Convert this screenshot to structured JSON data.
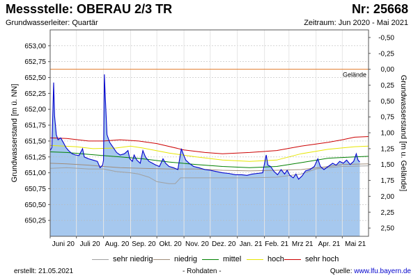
{
  "header": {
    "title": "Messstelle: OBERAU 2/3 TR",
    "number": "Nr: 25668",
    "aquifer": "Grundwasserleiter: Quartär",
    "period": "Zeitraum: Jun 2020 - Mai 2021"
  },
  "footer": {
    "created": "erstellt:  21.05.2021",
    "note": "- Rohdaten -",
    "source_label": "Quelle: ",
    "source_link": "www.lfu.bayern.de"
  },
  "colors": {
    "area_fill": "#a6c8ee",
    "measured_line": "#0000cc",
    "sehr_niedrig": "#a0a0a0",
    "niedrig": "#a08c7a",
    "mittel": "#008000",
    "hoch": "#e6e600",
    "sehr_hoch": "#cc0000",
    "gelaende": "#e07a2a",
    "grid": "#bbbbbb"
  },
  "chart_data": {
    "type": "line",
    "ylabel": "Grundwasserstand [m ü. NN]",
    "y2label": "Grundwasserstand [m u. Gelände]",
    "ylim": [
      650.0,
      653.25
    ],
    "y_ticks": [
      "650,25",
      "650,50",
      "650,75",
      "651,00",
      "651,25",
      "651,50",
      "651,75",
      "652,00",
      "652,25",
      "652,50",
      "652,75",
      "653,00"
    ],
    "y_tick_values": [
      650.25,
      650.5,
      650.75,
      651.0,
      651.25,
      651.5,
      651.75,
      652.0,
      652.25,
      652.5,
      652.75,
      653.0
    ],
    "y2_ticks": [
      "2,50",
      "2,25",
      "2,00",
      "1,75",
      "1,50",
      "1,25",
      "1,00",
      "0,75",
      "0,50",
      "0,25",
      "0,00",
      "-0,25",
      "-0,50"
    ],
    "y2_tick_values": [
      2.5,
      2.25,
      2.0,
      1.75,
      1.5,
      1.25,
      1.0,
      0.75,
      0.5,
      0.25,
      0.0,
      -0.25,
      -0.5
    ],
    "ground_level": 652.63,
    "ground_label": "Gelände",
    "x_start": "2020-06-01",
    "x_end": "2021-05-31",
    "x_ticks": [
      {
        "date": "2020-06-01",
        "label": "Juni 20"
      },
      {
        "date": "2020-07-01",
        "label": "Juli 20"
      },
      {
        "date": "2020-08-01",
        "label": "Aug. 20"
      },
      {
        "date": "2020-09-01",
        "label": "Sep. 20"
      },
      {
        "date": "2020-10-01",
        "label": "Okt. 20"
      },
      {
        "date": "2020-11-01",
        "label": "Nov. 20"
      },
      {
        "date": "2020-12-01",
        "label": "Dez. 20"
      },
      {
        "date": "2021-01-01",
        "label": "Jan. 21"
      },
      {
        "date": "2021-02-01",
        "label": "Feb. 21"
      },
      {
        "date": "2021-03-01",
        "label": "Mrz 21"
      },
      {
        "date": "2021-04-01",
        "label": "Apr. 21"
      },
      {
        "date": "2021-05-01",
        "label": "Mai 21"
      }
    ],
    "series": [
      {
        "name": "sehr niedrig",
        "color_key": "sehr_niedrig",
        "points": [
          [
            "2020-06-01",
            651.07
          ],
          [
            "2020-06-20",
            651.08
          ],
          [
            "2020-07-15",
            651.06
          ],
          [
            "2020-08-01",
            651.06
          ],
          [
            "2020-08-15",
            651.02
          ],
          [
            "2020-09-01",
            651.0
          ],
          [
            "2020-09-10",
            650.98
          ],
          [
            "2020-09-22",
            650.93
          ],
          [
            "2020-10-01",
            650.86
          ],
          [
            "2020-10-15",
            650.83
          ],
          [
            "2020-10-22",
            650.83
          ],
          [
            "2020-10-28",
            650.92
          ],
          [
            "2020-11-15",
            650.92
          ],
          [
            "2020-12-15",
            650.92
          ],
          [
            "2021-01-15",
            650.92
          ],
          [
            "2021-02-15",
            650.93
          ],
          [
            "2021-03-15",
            650.98
          ],
          [
            "2021-04-01",
            651.06
          ],
          [
            "2021-04-15",
            651.08
          ],
          [
            "2021-05-01",
            651.1
          ],
          [
            "2021-05-31",
            651.11
          ]
        ]
      },
      {
        "name": "niedrig",
        "color_key": "niedrig",
        "points": [
          [
            "2020-06-01",
            651.15
          ],
          [
            "2020-06-20",
            651.14
          ],
          [
            "2020-07-15",
            651.12
          ],
          [
            "2020-08-01",
            651.1
          ],
          [
            "2020-08-20",
            651.08
          ],
          [
            "2020-09-15",
            651.07
          ],
          [
            "2020-10-15",
            651.06
          ],
          [
            "2020-11-15",
            651.06
          ],
          [
            "2020-12-15",
            651.04
          ],
          [
            "2021-01-15",
            651.03
          ],
          [
            "2021-02-15",
            651.04
          ],
          [
            "2021-03-15",
            651.05
          ],
          [
            "2021-04-15",
            651.1
          ],
          [
            "2021-05-01",
            651.13
          ],
          [
            "2021-05-31",
            651.14
          ]
        ]
      },
      {
        "name": "mittel",
        "color_key": "mittel",
        "points": [
          [
            "2020-06-01",
            651.33
          ],
          [
            "2020-06-20",
            651.32
          ],
          [
            "2020-07-15",
            651.29
          ],
          [
            "2020-08-01",
            651.27
          ],
          [
            "2020-08-20",
            651.25
          ],
          [
            "2020-09-15",
            651.22
          ],
          [
            "2020-10-15",
            651.17
          ],
          [
            "2020-11-15",
            651.13
          ],
          [
            "2020-12-15",
            651.1
          ],
          [
            "2021-01-15",
            651.08
          ],
          [
            "2021-02-15",
            651.1
          ],
          [
            "2021-03-15",
            651.16
          ],
          [
            "2021-04-15",
            651.23
          ],
          [
            "2021-05-15",
            651.25
          ],
          [
            "2021-05-31",
            651.26
          ]
        ]
      },
      {
        "name": "hoch",
        "color_key": "hoch",
        "points": [
          [
            "2020-06-01",
            651.43
          ],
          [
            "2020-07-01",
            651.41
          ],
          [
            "2020-07-20",
            651.38
          ],
          [
            "2020-08-15",
            651.39
          ],
          [
            "2020-09-01",
            651.42
          ],
          [
            "2020-09-15",
            651.39
          ],
          [
            "2020-10-15",
            651.31
          ],
          [
            "2020-11-15",
            651.25
          ],
          [
            "2020-12-15",
            651.2
          ],
          [
            "2021-01-15",
            651.18
          ],
          [
            "2021-02-15",
            651.2
          ],
          [
            "2021-03-15",
            651.3
          ],
          [
            "2021-04-15",
            651.37
          ],
          [
            "2021-05-15",
            651.41
          ],
          [
            "2021-05-31",
            651.42
          ]
        ]
      },
      {
        "name": "sehr hoch",
        "color_key": "sehr_hoch",
        "points": [
          [
            "2020-06-01",
            651.55
          ],
          [
            "2020-06-20",
            651.54
          ],
          [
            "2020-07-15",
            651.5
          ],
          [
            "2020-08-01",
            651.5
          ],
          [
            "2020-08-20",
            651.52
          ],
          [
            "2020-09-10",
            651.5
          ],
          [
            "2020-10-01",
            651.46
          ],
          [
            "2020-11-01",
            651.36
          ],
          [
            "2020-11-25",
            651.32
          ],
          [
            "2020-12-15",
            651.3
          ],
          [
            "2021-01-15",
            651.32
          ],
          [
            "2021-02-15",
            651.35
          ],
          [
            "2021-03-15",
            651.42
          ],
          [
            "2021-04-15",
            651.48
          ],
          [
            "2021-05-01",
            651.52
          ],
          [
            "2021-05-15",
            651.56
          ],
          [
            "2021-05-31",
            651.57
          ]
        ]
      },
      {
        "name": "measured",
        "color_key": "measured_line",
        "points": [
          [
            "2020-06-01",
            651.35
          ],
          [
            "2020-06-03",
            651.4
          ],
          [
            "2020-06-05",
            652.42
          ],
          [
            "2020-06-06",
            651.9
          ],
          [
            "2020-06-08",
            651.6
          ],
          [
            "2020-06-10",
            651.52
          ],
          [
            "2020-06-13",
            651.55
          ],
          [
            "2020-06-16",
            651.48
          ],
          [
            "2020-06-19",
            651.4
          ],
          [
            "2020-06-22",
            651.35
          ],
          [
            "2020-06-26",
            651.3
          ],
          [
            "2020-06-30",
            651.28
          ],
          [
            "2020-07-04",
            651.27
          ],
          [
            "2020-07-08",
            651.38
          ],
          [
            "2020-07-10",
            651.25
          ],
          [
            "2020-07-15",
            651.22
          ],
          [
            "2020-07-20",
            651.2
          ],
          [
            "2020-07-25",
            651.18
          ],
          [
            "2020-07-28",
            651.08
          ],
          [
            "2020-07-31",
            651.12
          ],
          [
            "2020-08-01",
            651.2
          ],
          [
            "2020-08-02",
            652.55
          ],
          [
            "2020-08-03",
            652.2
          ],
          [
            "2020-08-05",
            651.6
          ],
          [
            "2020-08-08",
            651.48
          ],
          [
            "2020-08-12",
            651.4
          ],
          [
            "2020-08-16",
            651.32
          ],
          [
            "2020-08-20",
            651.28
          ],
          [
            "2020-08-25",
            651.3
          ],
          [
            "2020-08-29",
            651.35
          ],
          [
            "2020-08-31",
            651.22
          ],
          [
            "2020-09-03",
            651.18
          ],
          [
            "2020-09-05",
            651.28
          ],
          [
            "2020-09-08",
            651.2
          ],
          [
            "2020-09-12",
            651.15
          ],
          [
            "2020-09-15",
            651.35
          ],
          [
            "2020-09-18",
            651.25
          ],
          [
            "2020-09-22",
            651.18
          ],
          [
            "2020-09-26",
            651.15
          ],
          [
            "2020-09-30",
            651.12
          ],
          [
            "2020-10-04",
            651.1
          ],
          [
            "2020-10-08",
            651.22
          ],
          [
            "2020-10-11",
            651.15
          ],
          [
            "2020-10-15",
            651.1
          ],
          [
            "2020-10-20",
            651.08
          ],
          [
            "2020-10-25",
            651.05
          ],
          [
            "2020-10-29",
            651.38
          ],
          [
            "2020-10-31",
            651.3
          ],
          [
            "2020-11-03",
            651.2
          ],
          [
            "2020-11-07",
            651.15
          ],
          [
            "2020-11-12",
            651.1
          ],
          [
            "2020-11-18",
            651.08
          ],
          [
            "2020-11-25",
            651.05
          ],
          [
            "2020-12-01",
            651.04
          ],
          [
            "2020-12-08",
            651.02
          ],
          [
            "2020-12-15",
            651.0
          ],
          [
            "2020-12-22",
            650.99
          ],
          [
            "2020-12-30",
            650.97
          ],
          [
            "2021-01-06",
            650.97
          ],
          [
            "2021-01-12",
            650.96
          ],
          [
            "2021-01-18",
            650.98
          ],
          [
            "2021-01-24",
            650.99
          ],
          [
            "2021-01-30",
            651.0
          ],
          [
            "2021-02-03",
            651.28
          ],
          [
            "2021-02-05",
            651.12
          ],
          [
            "2021-02-08",
            651.1
          ],
          [
            "2021-02-12",
            651.02
          ],
          [
            "2021-02-16",
            650.97
          ],
          [
            "2021-02-20",
            651.05
          ],
          [
            "2021-02-24",
            650.98
          ],
          [
            "2021-02-27",
            651.04
          ],
          [
            "2021-03-02",
            650.96
          ],
          [
            "2021-03-06",
            650.92
          ],
          [
            "2021-03-09",
            650.98
          ],
          [
            "2021-03-12",
            650.9
          ],
          [
            "2021-03-16",
            650.95
          ],
          [
            "2021-03-20",
            651.03
          ],
          [
            "2021-03-25",
            651.05
          ],
          [
            "2021-03-30",
            651.1
          ],
          [
            "2021-04-03",
            651.22
          ],
          [
            "2021-04-06",
            651.1
          ],
          [
            "2021-04-10",
            651.05
          ],
          [
            "2021-04-15",
            651.1
          ],
          [
            "2021-04-20",
            651.15
          ],
          [
            "2021-04-24",
            651.12
          ],
          [
            "2021-04-28",
            651.18
          ],
          [
            "2021-05-02",
            651.15
          ],
          [
            "2021-05-06",
            651.2
          ],
          [
            "2021-05-10",
            651.13
          ],
          [
            "2021-05-14",
            651.18
          ],
          [
            "2021-05-17",
            651.3
          ],
          [
            "2021-05-19",
            651.2
          ],
          [
            "2021-05-21",
            651.17
          ]
        ]
      }
    ]
  },
  "legend": {
    "items": [
      {
        "label": "sehr niedrig",
        "color": "#a0a0a0"
      },
      {
        "label": "niedrig",
        "color": "#a08c7a"
      },
      {
        "label": "mittel",
        "color": "#008000"
      },
      {
        "label": "hoch",
        "color": "#e6e600"
      },
      {
        "label": "sehr hoch",
        "color": "#cc0000"
      }
    ]
  }
}
